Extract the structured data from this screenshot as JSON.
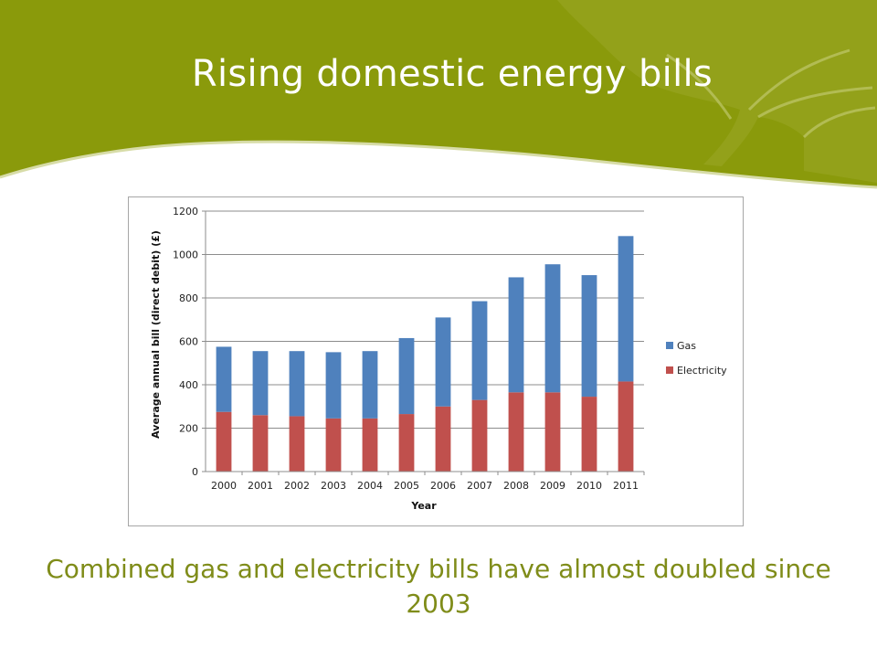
{
  "slide": {
    "title": "Rising domestic energy bills",
    "caption": "Combined gas and electricity bills have almost doubled since 2003",
    "colors": {
      "banner": "#8a9a0b",
      "banner_dark": "#7d8c08",
      "caption": "#7f8c19"
    }
  },
  "chart_data": {
    "type": "bar",
    "stacked": true,
    "title": "",
    "xlabel": "Year",
    "ylabel": "Average annual bill (direct debit) (£)",
    "ylim": [
      0,
      1200
    ],
    "yticks": [
      0,
      200,
      400,
      600,
      800,
      1000,
      1200
    ],
    "grid": true,
    "legend_position": "right",
    "categories": [
      "2000",
      "2001",
      "2002",
      "2003",
      "2004",
      "2005",
      "2006",
      "2007",
      "2008",
      "2009",
      "2010",
      "2011"
    ],
    "series": [
      {
        "name": "Electricity",
        "color": "#c0504d",
        "values": [
          275,
          260,
          255,
          245,
          245,
          265,
          300,
          330,
          365,
          365,
          345,
          415
        ]
      },
      {
        "name": "Gas",
        "color": "#4f81bd",
        "values": [
          300,
          295,
          300,
          305,
          310,
          350,
          410,
          455,
          530,
          590,
          560,
          670
        ]
      }
    ],
    "legend_order": [
      "Gas",
      "Electricity"
    ]
  }
}
